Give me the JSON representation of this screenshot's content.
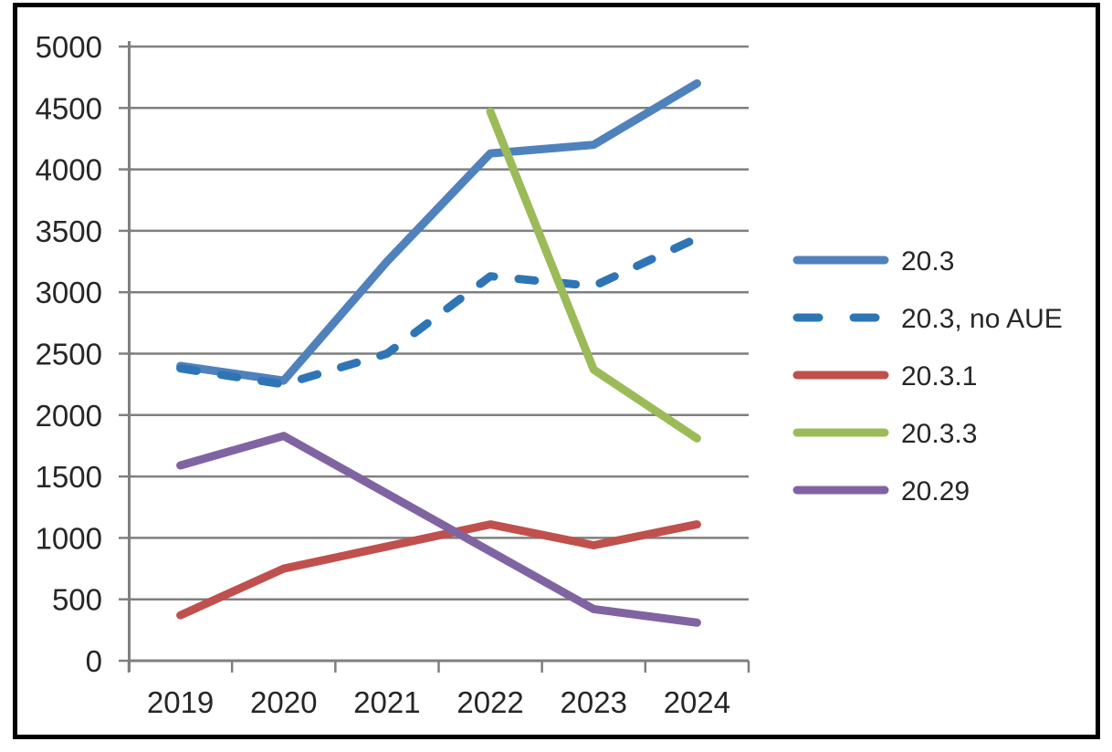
{
  "chart_data": {
    "type": "line",
    "categories": [
      "2019",
      "2020",
      "2021",
      "2022",
      "2023",
      "2024"
    ],
    "series": [
      {
        "name": "20.3",
        "color": "#4F81BD",
        "line_style": "solid",
        "values": [
          2400,
          2280,
          3250,
          4130,
          4200,
          4700
        ]
      },
      {
        "name": "20.3, no AUE",
        "color": "#2E75B6",
        "line_style": "dashed",
        "values": [
          2380,
          2250,
          2500,
          3130,
          3050,
          3440
        ]
      },
      {
        "name": "20.3.1",
        "color": "#C0504D",
        "line_style": "solid",
        "values": [
          370,
          750,
          930,
          1110,
          940,
          1110
        ]
      },
      {
        "name": "20.3.3",
        "color": "#9BBB59",
        "line_style": "solid",
        "values": [
          null,
          null,
          null,
          4470,
          2370,
          1810
        ]
      },
      {
        "name": "20.29",
        "color": "#8064A2",
        "line_style": "solid",
        "values": [
          1590,
          1830,
          1360,
          890,
          420,
          310
        ]
      }
    ],
    "y_axis": {
      "min": 0,
      "max": 5000,
      "step": 500,
      "tick_labels": [
        "5000",
        "4500",
        "4000",
        "3500",
        "3000",
        "2500",
        "2000",
        "1500",
        "1000",
        "500",
        "0"
      ]
    },
    "x_axis": {
      "tick_labels": [
        "2019",
        "2020",
        "2021",
        "2022",
        "2023",
        "2024"
      ]
    },
    "legend_position": "right",
    "grid": true,
    "colors": {
      "gridline": "#7F7F7F",
      "axis": "#7F7F7F",
      "text": "#262626",
      "frame_border": "#000000",
      "background": "#FFFFFF"
    }
  }
}
